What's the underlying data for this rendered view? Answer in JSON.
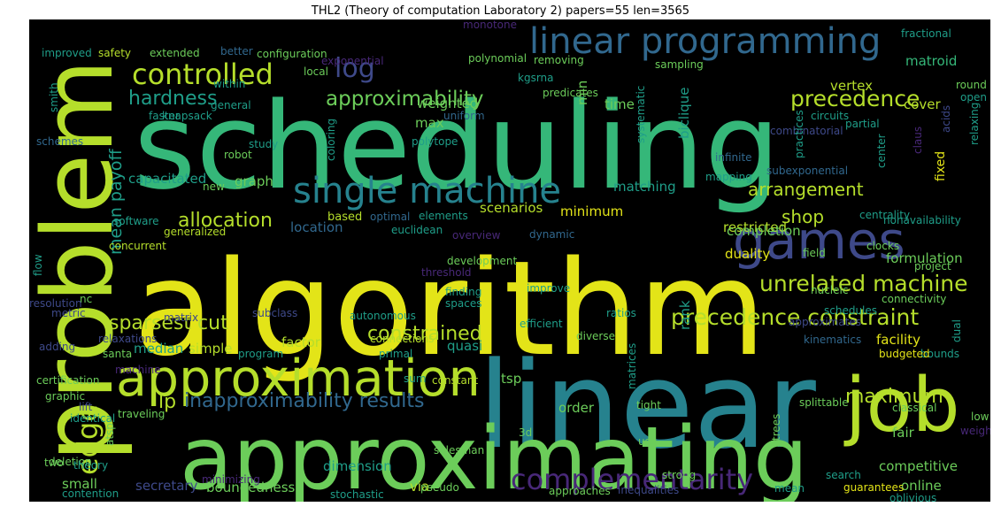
{
  "title": "THL2 (Theory of computation Laboratory 2) papers=55 len=3565",
  "background_color": "#000000",
  "palette": {
    "yellow": "#e3e418",
    "yellowgreen": "#b5de2b",
    "lightgreen": "#6ccd5a",
    "green": "#35b779",
    "teal": "#1f9e89",
    "tealblue": "#26828e",
    "blue": "#31688e",
    "indigo": "#3e4989",
    "purple": "#482878",
    "darkpurple": "#440154"
  },
  "words": [
    "scheduling",
    "algorithm",
    "problem",
    "linear",
    "approximating",
    "job",
    "approximation",
    "games",
    "linear programming",
    "single machine",
    "controlled",
    "complementarity",
    "log",
    "edge",
    "unrelated machine",
    "precedence constraint",
    "approximability",
    "hardness",
    "precedence",
    "inapproximability results",
    "allocation",
    "sparsest cut",
    "arrangement",
    "constrained",
    "shop",
    "mean payoff",
    "maximum",
    "weighted",
    "lp",
    "matroid",
    "vertex",
    "biclique",
    "max",
    "cover",
    "restricted",
    "duality",
    "capacitated",
    "graph",
    "matching",
    "scenarios",
    "minimum",
    "location",
    "factor",
    "completion",
    "formulation",
    "facility",
    "rank",
    "median",
    "simple",
    "quasi",
    "tsp",
    "competitive",
    "online",
    "fair",
    "secretary",
    "boundedness",
    "dimension",
    "small",
    "order",
    "via",
    "knapsack",
    "robot",
    "improved",
    "safety",
    "extended",
    "better",
    "configuration",
    "monotone",
    "fractional",
    "local",
    "polynomial",
    "kgsrna",
    "exponential",
    "removing",
    "sampling",
    "time",
    "min",
    "predicates",
    "circuits",
    "round",
    "open",
    "within",
    "general",
    "faster",
    "uniform",
    "smith",
    "systematic",
    "combinatorial",
    "partial",
    "study",
    "coloring",
    "schemes",
    "polytope",
    "practices",
    "relaxing",
    "claus",
    "infinite",
    "fixed",
    "center",
    "subexponential",
    "mapping",
    "acids",
    "new",
    "software",
    "generalized",
    "concurrent",
    "based",
    "optimal",
    "elements",
    "euclidean",
    "overview",
    "dynamic",
    "nonavailability",
    "centrality",
    "clocks",
    "field",
    "nucleic",
    "project",
    "flow",
    "nc",
    "development",
    "threshold",
    "finding",
    "metric",
    "improve",
    "spaces",
    "connectivity",
    "schedules",
    "resolution",
    "autonomous",
    "approximates",
    "subclass",
    "matrix",
    "kinematics",
    "ratios",
    "adding",
    "relaxations",
    "efficient",
    "santa",
    "machine",
    "diverse",
    "connections",
    "program",
    "primal",
    "dual",
    "bounds",
    "budgeted",
    "certification",
    "constant",
    "sum",
    "matrices",
    "graphic",
    "traveling",
    "splittable",
    "classical",
    "low",
    "lift",
    "identical",
    "atsp",
    "3d",
    "tight",
    "trees",
    "weights",
    "use",
    "two",
    "deletion",
    "theory",
    "salesman",
    "strong",
    "search",
    "minimizing",
    "pseudo",
    "approaches",
    "inequalities",
    "mean",
    "guarantees",
    "oblivious",
    "contention",
    "stochastic"
  ]
}
